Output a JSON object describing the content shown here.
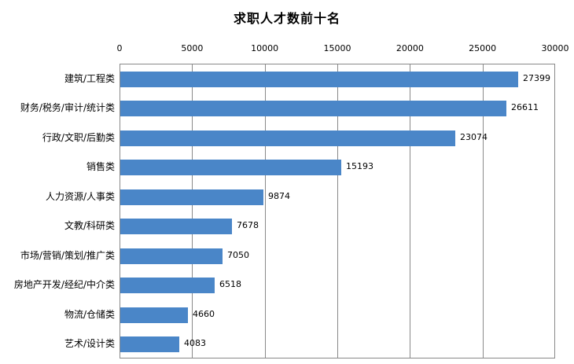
{
  "chart_data": {
    "type": "bar",
    "orientation": "horizontal",
    "title": "求职人才数前十名",
    "categories": [
      "建筑/工程类",
      "财务/税务/审计/统计类",
      "行政/文职/后勤类",
      "销售类",
      "人力资源/人事类",
      "文教/科研类",
      "市场/营销/策划/推广类",
      "房地产开发/经纪/中介类",
      "物流/仓储类",
      "艺术/设计类"
    ],
    "values": [
      27399,
      26611,
      23074,
      15193,
      9874,
      7678,
      7050,
      6518,
      4660,
      4083
    ],
    "value_labels": [
      "27399",
      "26611",
      "23074",
      "15193",
      "9874",
      "7678",
      "7050",
      "6518",
      "4660",
      "4083"
    ],
    "x_axis": {
      "position": "top",
      "min": 0,
      "max": 30000,
      "tick_interval": 5000,
      "tick_labels": [
        "0",
        "5000",
        "10000",
        "15000",
        "20000",
        "25000",
        "30000"
      ]
    },
    "grid": true,
    "legend": "none",
    "colors": {
      "bar": "#4A86C8",
      "gridline": "#898989",
      "axis_line": "#898989",
      "text": "#000000",
      "background": "#FFFFFF"
    }
  }
}
